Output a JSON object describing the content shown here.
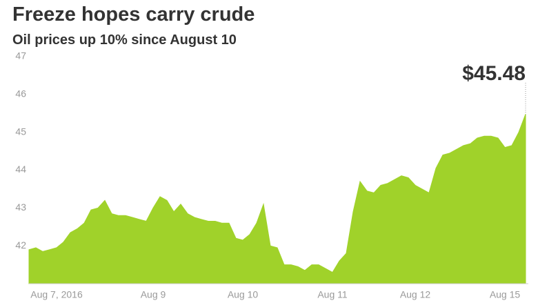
{
  "chart_data": {
    "type": "area",
    "title": "Freeze hopes carry crude",
    "subtitle": "Oil prices up 10% since August 10",
    "categories": [
      null,
      null,
      null,
      null,
      "Aug 7, 2016",
      null,
      null,
      null,
      null,
      null,
      null,
      null,
      null,
      null,
      null,
      null,
      null,
      null,
      "Aug 9",
      null,
      null,
      null,
      null,
      null,
      null,
      null,
      null,
      null,
      null,
      null,
      null,
      "Aug 10",
      null,
      null,
      null,
      null,
      null,
      null,
      null,
      null,
      null,
      null,
      null,
      null,
      "Aug 11",
      null,
      null,
      null,
      null,
      null,
      null,
      null,
      null,
      null,
      null,
      null,
      "Aug 12",
      null,
      null,
      null,
      null,
      null,
      null,
      null,
      null,
      null,
      null,
      null,
      null,
      "Aug 15",
      null,
      null,
      null
    ],
    "values": [
      41.9,
      41.95,
      41.85,
      41.9,
      41.95,
      42.1,
      42.35,
      42.45,
      42.6,
      42.95,
      43.0,
      43.2,
      42.85,
      42.8,
      42.8,
      42.75,
      42.7,
      42.65,
      43.0,
      43.3,
      43.2,
      42.9,
      43.1,
      42.85,
      42.75,
      42.7,
      42.65,
      42.65,
      42.6,
      42.6,
      42.2,
      42.15,
      42.3,
      42.6,
      43.1,
      42.0,
      41.95,
      41.5,
      41.5,
      41.45,
      41.35,
      41.5,
      41.5,
      41.4,
      41.3,
      41.6,
      41.8,
      42.9,
      43.7,
      43.45,
      43.4,
      43.6,
      43.65,
      43.75,
      43.85,
      43.8,
      43.6,
      43.5,
      43.4,
      44.05,
      44.4,
      44.45,
      44.55,
      44.65,
      44.7,
      44.85,
      44.9,
      44.9,
      44.85,
      44.6,
      44.65,
      45.0,
      45.48
    ],
    "value_labels": [
      null,
      null,
      null,
      null,
      null,
      null,
      null,
      null,
      null,
      null,
      null,
      null,
      null,
      null,
      null,
      null,
      null,
      null,
      null,
      null,
      null,
      null,
      null,
      null,
      null,
      null,
      null,
      null,
      null,
      null,
      null,
      null,
      null,
      null,
      null,
      null,
      null,
      null,
      null,
      null,
      null,
      null,
      null,
      null,
      null,
      null,
      null,
      null,
      null,
      null,
      null,
      null,
      null,
      null,
      null,
      null,
      null,
      null,
      null,
      null,
      null,
      null,
      null,
      null,
      null,
      null,
      null,
      null,
      null,
      null,
      null,
      null,
      "$45.48"
    ],
    "color": "#a0d22a",
    "ylim": [
      41,
      47
    ],
    "yticks": [
      42,
      43,
      44,
      45,
      46,
      47
    ],
    "grid": false
  }
}
